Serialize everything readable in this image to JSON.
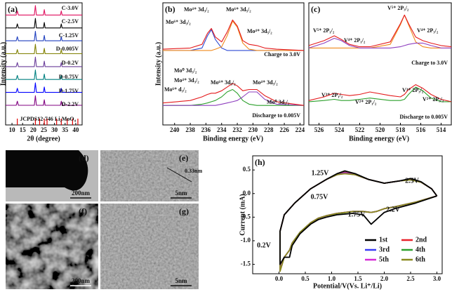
{
  "chart_data": [
    {
      "type": "line",
      "label": "(a)",
      "x_label": "2θ (degree)",
      "y_label": "Intensity (a.u.)",
      "xlim": [
        7,
        43
      ],
      "xticks": [
        10,
        15,
        20,
        25,
        30,
        35,
        40
      ],
      "ylim": [
        0,
        9
      ],
      "x": [
        7,
        12,
        12.5,
        13,
        20.5,
        21,
        21.5,
        24.8,
        25.2,
        25.6,
        32.8,
        33.2,
        33.6,
        43
      ],
      "series": [
        {
          "name": "C-3.0V",
          "color": "#e0115f",
          "values": [
            8.1,
            8.1,
            8.4,
            8.1,
            8.1,
            8.8,
            8.1,
            8.1,
            8.5,
            8.1,
            8.1,
            8.4,
            8.1,
            8.1
          ]
        },
        {
          "name": "C-2.5V",
          "color": "#000000",
          "values": [
            7.15,
            7.15,
            7.45,
            7.15,
            7.15,
            7.85,
            7.15,
            7.15,
            7.55,
            7.15,
            7.15,
            7.45,
            7.15,
            7.15
          ]
        },
        {
          "name": "C-1.25V",
          "color": "#1f3fbf",
          "values": [
            6.2,
            6.2,
            6.5,
            6.2,
            6.2,
            6.9,
            6.2,
            6.2,
            6.6,
            6.2,
            6.2,
            6.5,
            6.2,
            6.2
          ]
        },
        {
          "name": "D-0.005V",
          "color": "#808000",
          "values": [
            5.25,
            5.25,
            5.55,
            5.25,
            5.25,
            5.95,
            5.25,
            5.25,
            5.65,
            5.25,
            5.25,
            5.55,
            5.25,
            5.25
          ]
        },
        {
          "name": "D-0.2V",
          "color": "#6a3d9a",
          "values": [
            4.3,
            4.3,
            4.6,
            4.3,
            4.3,
            5.0,
            4.3,
            4.3,
            4.7,
            4.3,
            4.3,
            4.6,
            4.3,
            4.3
          ]
        },
        {
          "name": "D-0.75V",
          "color": "#008080",
          "values": [
            3.35,
            3.35,
            3.65,
            3.35,
            3.35,
            4.05,
            3.35,
            3.35,
            3.75,
            3.35,
            3.35,
            3.65,
            3.35,
            3.35
          ]
        },
        {
          "name": "D-1.75V",
          "color": "#0000ff",
          "values": [
            2.4,
            2.4,
            2.7,
            2.4,
            2.4,
            3.1,
            2.4,
            2.4,
            2.8,
            2.4,
            2.4,
            2.7,
            2.4,
            2.4
          ]
        },
        {
          "name": "D-2.2V",
          "color": "#800080",
          "values": [
            1.45,
            1.45,
            1.75,
            1.45,
            1.45,
            2.15,
            1.45,
            1.45,
            1.85,
            1.45,
            1.45,
            1.75,
            1.45,
            1.45
          ]
        }
      ],
      "reference": {
        "name": "JCPDS12-746 Li₂MoO₄",
        "color": "#e00000",
        "positions": [
          12.5,
          21,
          23,
          25.2,
          26.5,
          31,
          33.2,
          36,
          38.5,
          41
        ]
      },
      "annotations": []
    },
    {
      "type": "line",
      "label": "(b)",
      "x_label": "Binding energy (eV)",
      "y_label": "Intensity (a.u.)",
      "xlim": [
        241.5,
        223.5
      ],
      "xticks": [
        240,
        238,
        236,
        234,
        232,
        230,
        228,
        226,
        224
      ],
      "ylim": [
        0,
        10
      ],
      "x": [
        241.5,
        238,
        236.5,
        235.8,
        235.3,
        234.8,
        234,
        233.3,
        232.6,
        232,
        231.3,
        230.5,
        229.5,
        228.5,
        227,
        223.5
      ],
      "series": [
        {
          "color": "#2e4bd3",
          "values": [
            6.1,
            6.1,
            6.3,
            7.3,
            7.8,
            7.0,
            6.3,
            6.1,
            6.1,
            6.1,
            6.1,
            6.1,
            6.1,
            6.1,
            6.1,
            6.1
          ]
        },
        {
          "color": "#f08a1c",
          "values": [
            6.1,
            6.1,
            6.1,
            6.1,
            6.1,
            6.2,
            6.4,
            7.3,
            8.5,
            8.0,
            6.7,
            6.2,
            6.1,
            6.1,
            6.1,
            6.1
          ]
        },
        {
          "color": "#e41a1c",
          "values": [
            6.2,
            6.3,
            6.6,
            7.5,
            7.9,
            7.2,
            6.8,
            7.6,
            8.6,
            8.1,
            6.9,
            6.6,
            6.5,
            6.3,
            6.2,
            6.1
          ]
        },
        {
          "color": "#2ca02c",
          "values": [
            1.6,
            1.6,
            1.7,
            1.8,
            1.9,
            2.0,
            2.3,
            2.7,
            2.9,
            2.6,
            2.0,
            1.7,
            1.6,
            1.6,
            1.6,
            1.6
          ]
        },
        {
          "color": "#8e3fbf",
          "values": [
            1.6,
            1.6,
            1.6,
            1.6,
            1.6,
            1.6,
            1.7,
            1.8,
            1.9,
            2.0,
            2.3,
            2.7,
            2.7,
            2.1,
            1.7,
            1.6
          ]
        },
        {
          "color": "#e41a1c",
          "values": [
            1.8,
            2.0,
            2.3,
            2.5,
            2.6,
            2.6,
            2.8,
            3.1,
            3.4,
            3.2,
            2.8,
            2.9,
            2.9,
            2.4,
            1.9,
            1.6
          ]
        }
      ],
      "annotations": [
        "Mo⁶⁺ 3d₃/₂",
        "Mo⁴⁺ 3d₃/₂",
        "Mo⁶⁺ 3d₅/₂",
        "Mo⁴⁺ 3d₅/₂",
        "Charge to 3.0V",
        "Mo⁰ 3d₃/₂",
        "Mo⁴⁺ 3d₃/₂",
        "Mo⁶⁺ d₃/₂",
        "Mo⁶⁺ 3d₅/₂",
        "Mo⁴⁺ 3d₅/₂",
        "Mo⁰ 3d₅/₂",
        "Discharge to 0.005V"
      ]
    },
    {
      "type": "line",
      "label": "(c)",
      "x_label": "Binding energy (eV)",
      "xlim": [
        527,
        513
      ],
      "xticks": [
        526,
        524,
        522,
        520,
        518,
        516,
        514
      ],
      "ylim": [
        0,
        10
      ],
      "x": [
        527,
        525.5,
        524.5,
        523.8,
        523,
        522,
        521,
        519,
        518,
        517.6,
        517.2,
        516.5,
        515.8,
        515,
        514,
        513
      ],
      "series": [
        {
          "color": "#f08a1c",
          "values": [
            6.3,
            6.3,
            6.3,
            6.3,
            6.3,
            6.3,
            6.3,
            6.6,
            8.2,
            9.0,
            8.2,
            6.8,
            6.4,
            6.3,
            6.3,
            6.3
          ]
        },
        {
          "color": "#8e3fbf",
          "values": [
            6.3,
            6.7,
            7.1,
            6.9,
            6.5,
            6.3,
            6.3,
            6.3,
            6.4,
            6.5,
            6.6,
            6.7,
            6.7,
            6.5,
            6.3,
            6.3
          ]
        },
        {
          "color": "#e41a1c",
          "values": [
            6.5,
            6.9,
            7.3,
            7.0,
            6.6,
            6.4,
            6.4,
            6.8,
            8.3,
            9.0,
            8.3,
            7.2,
            6.9,
            6.7,
            6.5,
            6.4
          ]
        },
        {
          "color": "#2ca02c",
          "values": [
            1.9,
            2.0,
            2.1,
            2.0,
            2.0,
            2.1,
            2.2,
            2.0,
            2.0,
            2.1,
            2.5,
            3.1,
            2.8,
            2.2,
            1.9,
            1.9
          ]
        },
        {
          "color": "#e41a1c",
          "values": [
            2.0,
            2.3,
            2.6,
            2.5,
            2.4,
            2.5,
            2.7,
            2.4,
            2.3,
            2.5,
            2.9,
            3.3,
            3.0,
            2.5,
            2.1,
            1.9
          ]
        }
      ],
      "annotations": [
        "V⁵⁺ 2P₁/₂",
        "V⁴⁺ 2P₁/₂",
        "V⁵⁺ 2P₃/₂",
        "V⁴⁺ 2P₃/₂",
        "Charge to 3.0V",
        "V³⁺ 2P₁/₂",
        "V²⁺ 2P₁/₂",
        "V³⁺ 2P₃/₂",
        "V²⁺ 2P₃/₂",
        "Discharge to 0.005V"
      ]
    },
    {
      "type": "line",
      "label": "(h)",
      "x_label": "Potential/V(Vs. Li⁺/Li)",
      "y_label": "Current (mA)",
      "xlim": [
        -0.5,
        3.1
      ],
      "xticks": [
        {
          "value": 0,
          "label": "0.0"
        },
        0.5,
        {
          "value": 1,
          "label": "1.0"
        },
        1.5,
        {
          "value": 2,
          "label": "2.0"
        },
        2.5,
        {
          "value": 3,
          "label": "3.0"
        }
      ],
      "ylim": [
        -1.7,
        0.8
      ],
      "yticks": [
        0.5,
        {
          "value": 0,
          "label": "0.0"
        },
        -0.5,
        {
          "value": -1,
          "label": "-1.0"
        },
        -1.5
      ],
      "legend": "lower right",
      "x": [
        3.0,
        2.6,
        2.2,
        2.0,
        1.85,
        1.75,
        1.6,
        1.4,
        1.1,
        0.9,
        0.75,
        0.6,
        0.4,
        0.25,
        0.2,
        0.1,
        0.02,
        0.02,
        0.1,
        0.3,
        0.6,
        0.9,
        1.1,
        1.25,
        1.45,
        1.7,
        2.0,
        2.3,
        2.5,
        2.7,
        2.9,
        3.0
      ],
      "series": [
        {
          "name": "2nd",
          "color": "#e8222a",
          "values": [
            -0.05,
            -0.18,
            -0.28,
            -0.32,
            -0.38,
            -0.4,
            -0.38,
            -0.38,
            -0.42,
            -0.47,
            -0.52,
            -0.62,
            -0.82,
            -1.05,
            -1.2,
            -1.35,
            -1.6,
            -0.8,
            -0.45,
            -0.2,
            0.1,
            0.3,
            0.4,
            0.45,
            0.4,
            0.3,
            0.22,
            0.27,
            0.3,
            0.24,
            0.1,
            -0.05
          ]
        },
        {
          "name": "3rd",
          "color": "#3b3bf5",
          "values": [
            -0.05,
            -0.18,
            -0.28,
            -0.32,
            -0.38,
            -0.4,
            -0.38,
            -0.38,
            -0.42,
            -0.47,
            -0.52,
            -0.62,
            -0.82,
            -1.05,
            -1.2,
            -1.35,
            -1.62,
            -0.8,
            -0.45,
            -0.2,
            0.1,
            0.3,
            0.4,
            0.44,
            0.4,
            0.3,
            0.22,
            0.27,
            0.3,
            0.24,
            0.1,
            -0.05
          ]
        },
        {
          "name": "4th",
          "color": "#2ca02c",
          "values": [
            -0.05,
            -0.18,
            -0.28,
            -0.32,
            -0.38,
            -0.4,
            -0.38,
            -0.38,
            -0.43,
            -0.47,
            -0.52,
            -0.62,
            -0.82,
            -1.05,
            -1.2,
            -1.35,
            -1.63,
            -0.8,
            -0.45,
            -0.2,
            0.1,
            0.3,
            0.4,
            0.43,
            0.4,
            0.3,
            0.22,
            0.27,
            0.3,
            0.24,
            0.1,
            -0.05
          ]
        },
        {
          "name": "5th",
          "color": "#d62ad6",
          "values": [
            -0.05,
            -0.18,
            -0.28,
            -0.32,
            -0.38,
            -0.4,
            -0.38,
            -0.38,
            -0.42,
            -0.47,
            -0.52,
            -0.62,
            -0.83,
            -1.05,
            -1.2,
            -1.35,
            -1.64,
            -0.8,
            -0.45,
            -0.2,
            0.1,
            0.3,
            0.4,
            0.43,
            0.4,
            0.3,
            0.22,
            0.27,
            0.3,
            0.24,
            0.1,
            -0.05
          ]
        },
        {
          "name": "6th",
          "color": "#8a8a1f",
          "values": [
            -0.05,
            -0.18,
            -0.28,
            -0.32,
            -0.38,
            -0.4,
            -0.38,
            -0.38,
            -0.42,
            -0.47,
            -0.52,
            -0.62,
            -0.82,
            -1.05,
            -1.2,
            -1.35,
            -1.65,
            -0.8,
            -0.45,
            -0.2,
            0.1,
            0.3,
            0.4,
            0.42,
            0.4,
            0.3,
            0.22,
            0.27,
            0.29,
            0.24,
            0.1,
            -0.05
          ]
        },
        {
          "name": "1st",
          "color": "#000000",
          "values": [
            -0.05,
            -0.2,
            -0.32,
            -0.4,
            -0.55,
            -0.65,
            -0.45,
            -0.42,
            -0.45,
            -0.5,
            -0.55,
            -0.65,
            -0.85,
            -1.1,
            -1.35,
            -1.35,
            -1.5,
            -0.8,
            -0.45,
            -0.2,
            0.1,
            0.3,
            0.42,
            0.48,
            0.42,
            0.3,
            0.22,
            0.27,
            0.32,
            0.25,
            0.1,
            -0.05
          ]
        }
      ],
      "annotations": [
        "1.25V",
        "2.5V",
        "0.75V",
        "1.75V",
        "2.2V",
        "0.2V"
      ]
    }
  ],
  "images": [
    {
      "label": "(d)",
      "scale": "200nm"
    },
    {
      "label": "(e)",
      "scale": "5nm",
      "annotation": "0.33nm"
    },
    {
      "label": "(f)",
      "scale": "200nm"
    },
    {
      "label": "(g)",
      "scale": "5nm"
    }
  ]
}
